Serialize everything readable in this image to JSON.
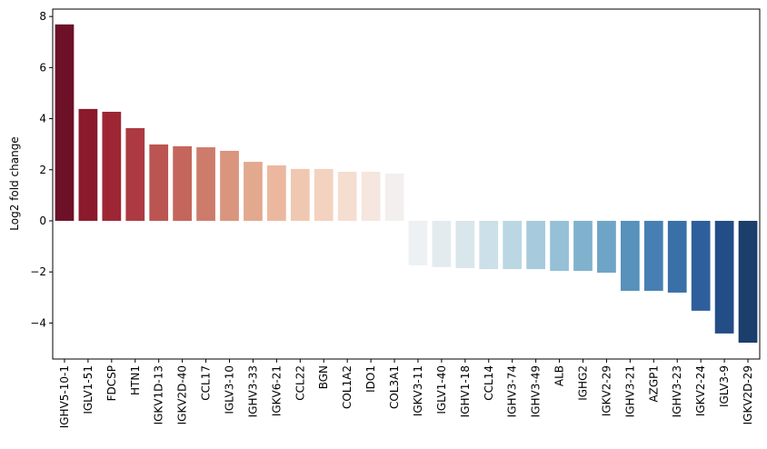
{
  "chart_data": {
    "type": "bar",
    "y_label": "Log2 fold change",
    "categories": [
      "IGHV5-10-1",
      "IGLV1-51",
      "FDCSP",
      "HTN1",
      "IGKV1D-13",
      "IGKV2D-40",
      "CCL17",
      "IGLV3-10",
      "IGHV3-33",
      "IGKV6-21",
      "CCL22",
      "BGN",
      "COL1A2",
      "IDO1",
      "COL3A1",
      "IGKV3-11",
      "IGLV1-40",
      "IGHV1-18",
      "CCL14",
      "IGHV3-74",
      "IGHV3-49",
      "ALB",
      "IGHG2",
      "IGKV2-29",
      "IGHV3-21",
      "AZGP1",
      "IGHV3-23",
      "IGKV2-24",
      "IGLV3-9",
      "IGKV2D-29"
    ],
    "values": [
      7.69,
      4.38,
      4.27,
      3.63,
      2.99,
      2.92,
      2.88,
      2.74,
      2.31,
      2.17,
      2.03,
      2.03,
      1.92,
      1.92,
      1.85,
      -1.74,
      -1.81,
      -1.85,
      -1.89,
      -1.89,
      -1.89,
      -1.96,
      -1.96,
      -2.03,
      -2.74,
      -2.74,
      -2.81,
      -3.52,
      -4.41,
      -4.77
    ],
    "colors": [
      "#6d1128",
      "#8b1a2c",
      "#9e2634",
      "#ad3a42",
      "#bb5551",
      "#c4665b",
      "#cd7c6b",
      "#d9957e",
      "#e2a98f",
      "#ebb89f",
      "#f0c8b2",
      "#f3d2c0",
      "#f5ddd0",
      "#f5e6df",
      "#f3efef",
      "#eef1f3",
      "#e3ebef",
      "#d9e6ec",
      "#cbe0e8",
      "#bad7e3",
      "#a7cbdc",
      "#96c0d6",
      "#80b2cd",
      "#6ea5c6",
      "#5791bc",
      "#477fb2",
      "#3a70a8",
      "#2e5f9c",
      "#234d87",
      "#1b3e6b"
    ],
    "ylim": [
      -5.41,
      8.29
    ],
    "yticks": [
      {
        "value": -4,
        "label": "−4"
      },
      {
        "value": -2,
        "label": "−2"
      },
      0,
      2,
      4,
      6,
      8
    ],
    "grid": false
  }
}
